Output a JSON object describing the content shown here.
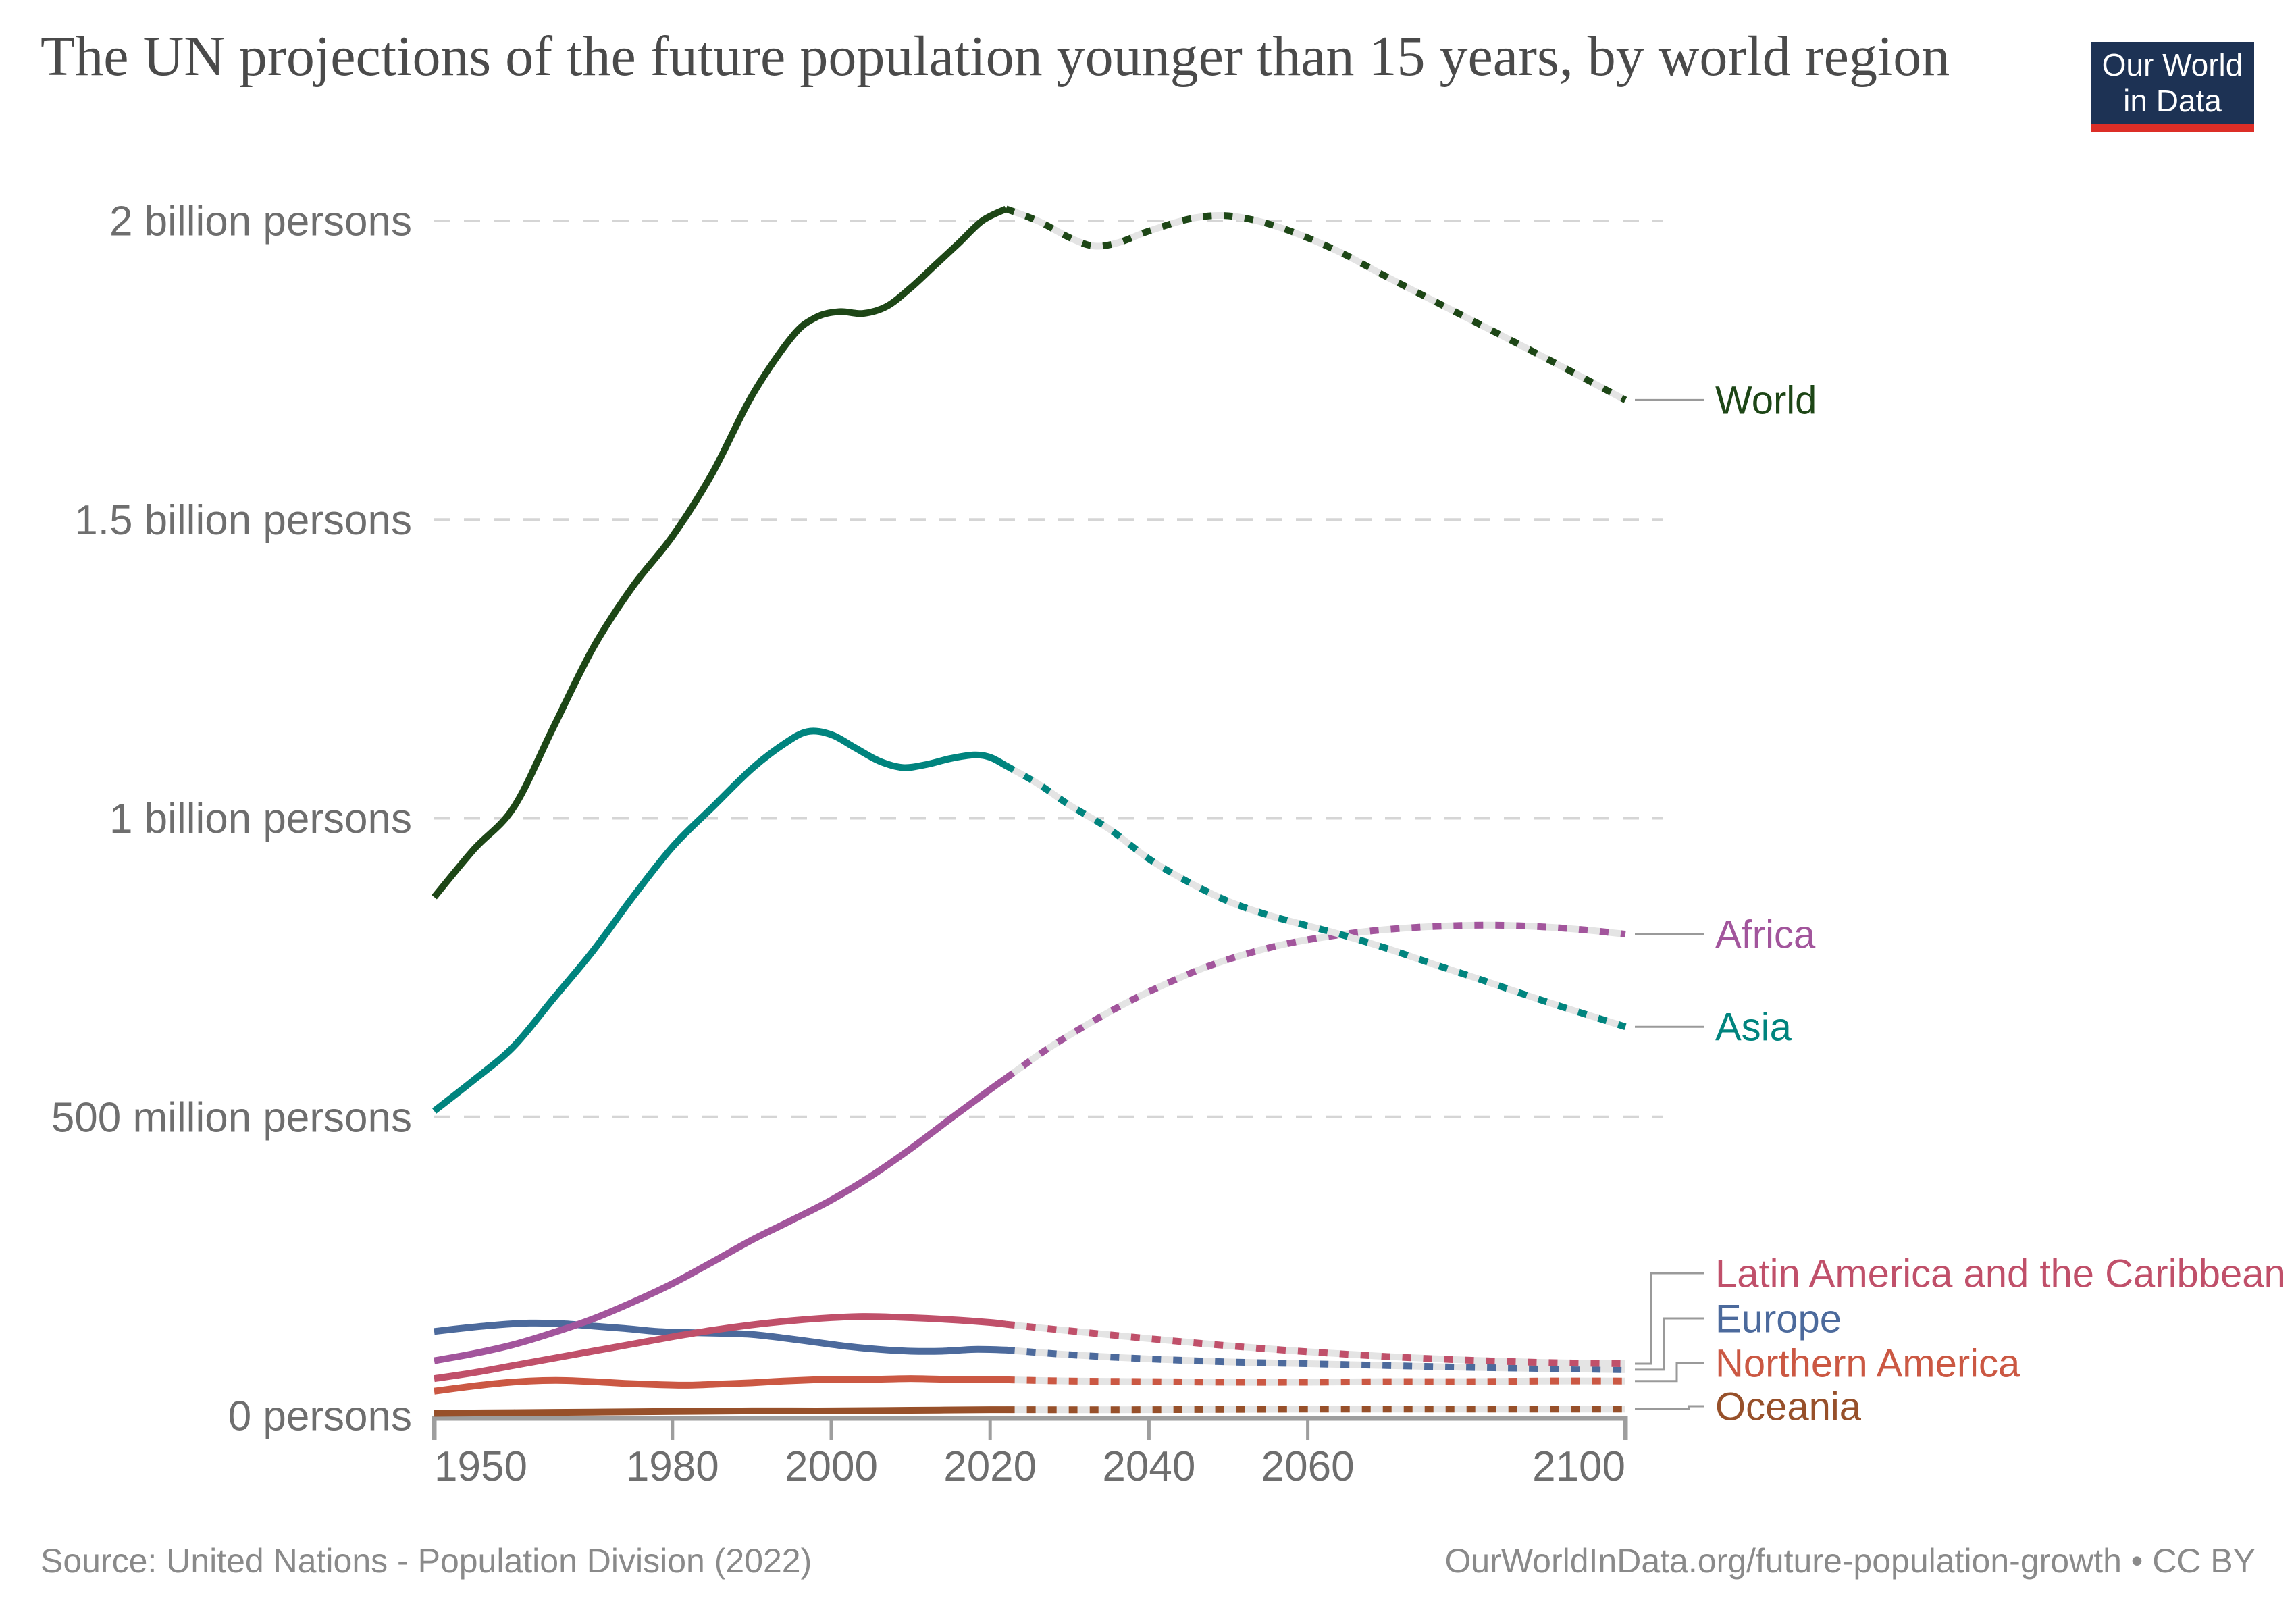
{
  "title": "The UN projections of the future population younger than 15 years, by world region",
  "logo": {
    "line1": "Our World",
    "line2": "in Data",
    "background_color": "#1d3254",
    "bar_color": "#dc2e27"
  },
  "footer": {
    "source": "Source: United Nations - Population Division (2022)",
    "credit": "OurWorldInData.org/future-population-growth • CC BY"
  },
  "chart_data": {
    "type": "line",
    "title": "The UN projections of the future population younger than 15 years, by world region",
    "units": "million persons",
    "xlabel": "",
    "ylabel": "",
    "x_range": [
      1950,
      2100
    ],
    "y_range_millions": [
      0,
      2000
    ],
    "grid": true,
    "projection_start_year": 2022,
    "projection_style": "dotted",
    "legend_position": "right-end-labels",
    "x_ticks": [
      {
        "year": 1950,
        "label": "1950"
      },
      {
        "year": 1980,
        "label": "1980"
      },
      {
        "year": 2000,
        "label": "2000"
      },
      {
        "year": 2020,
        "label": "2020"
      },
      {
        "year": 2040,
        "label": "2040"
      },
      {
        "year": 2060,
        "label": "2060"
      },
      {
        "year": 2100,
        "label": "2100"
      }
    ],
    "y_ticks": [
      {
        "value_millions": 0,
        "label": "0 persons"
      },
      {
        "value_millions": 500,
        "label": "500 million persons"
      },
      {
        "value_millions": 1000,
        "label": "1 billion persons"
      },
      {
        "value_millions": 1500,
        "label": "1.5 billion persons"
      },
      {
        "value_millions": 2000,
        "label": "2 billion persons"
      }
    ],
    "series": [
      {
        "name": "Europe",
        "color": "#4C6A9C",
        "estimate": [
          [
            1950,
            141
          ],
          [
            1954,
            147
          ],
          [
            1958,
            152
          ],
          [
            1962,
            155
          ],
          [
            1966,
            154
          ],
          [
            1970,
            150
          ],
          [
            1974,
            146
          ],
          [
            1978,
            141
          ],
          [
            1982,
            139
          ],
          [
            1986,
            138
          ],
          [
            1990,
            136
          ],
          [
            1994,
            130
          ],
          [
            1998,
            123
          ],
          [
            2002,
            116
          ],
          [
            2006,
            111
          ],
          [
            2010,
            108
          ],
          [
            2014,
            108
          ],
          [
            2018,
            111
          ],
          [
            2022,
            110
          ]
        ],
        "projection": [
          [
            2022,
            110
          ],
          [
            2030,
            102
          ],
          [
            2040,
            95
          ],
          [
            2050,
            90
          ],
          [
            2060,
            87
          ],
          [
            2070,
            84
          ],
          [
            2080,
            81
          ],
          [
            2090,
            79
          ],
          [
            2100,
            77
          ]
        ]
      },
      {
        "name": "Latin America and the Caribbean",
        "color": "#C0506A",
        "estimate": [
          [
            1950,
            62
          ],
          [
            1955,
            72
          ],
          [
            1960,
            84
          ],
          [
            1965,
            96
          ],
          [
            1970,
            108
          ],
          [
            1975,
            120
          ],
          [
            1980,
            132
          ],
          [
            1985,
            143
          ],
          [
            1990,
            152
          ],
          [
            1995,
            159
          ],
          [
            2000,
            164
          ],
          [
            2004,
            166
          ],
          [
            2008,
            165
          ],
          [
            2012,
            163
          ],
          [
            2016,
            160
          ],
          [
            2020,
            156
          ],
          [
            2022,
            153
          ]
        ],
        "projection": [
          [
            2022,
            153
          ],
          [
            2030,
            142
          ],
          [
            2040,
            129
          ],
          [
            2050,
            117
          ],
          [
            2060,
            107
          ],
          [
            2070,
            99
          ],
          [
            2080,
            93
          ],
          [
            2090,
            89
          ],
          [
            2100,
            87
          ]
        ]
      },
      {
        "name": "Northern America",
        "color": "#CB5843",
        "estimate": [
          [
            1950,
            41
          ],
          [
            1954,
            48
          ],
          [
            1958,
            54
          ],
          [
            1962,
            58
          ],
          [
            1966,
            59
          ],
          [
            1970,
            57
          ],
          [
            1974,
            54
          ],
          [
            1978,
            52
          ],
          [
            1982,
            51
          ],
          [
            1986,
            53
          ],
          [
            1990,
            55
          ],
          [
            1994,
            58
          ],
          [
            1998,
            60
          ],
          [
            2002,
            61
          ],
          [
            2006,
            61
          ],
          [
            2010,
            62
          ],
          [
            2014,
            61
          ],
          [
            2018,
            61
          ],
          [
            2022,
            60
          ]
        ],
        "projection": [
          [
            2022,
            60
          ],
          [
            2030,
            58
          ],
          [
            2040,
            57
          ],
          [
            2050,
            56
          ],
          [
            2060,
            56
          ],
          [
            2070,
            57
          ],
          [
            2080,
            57
          ],
          [
            2090,
            58
          ],
          [
            2100,
            58
          ]
        ]
      },
      {
        "name": "Oceania",
        "color": "#97502A",
        "estimate": [
          [
            1950,
            4
          ],
          [
            1960,
            5
          ],
          [
            1970,
            6
          ],
          [
            1980,
            7
          ],
          [
            1990,
            8
          ],
          [
            2000,
            8
          ],
          [
            2010,
            9
          ],
          [
            2020,
            10
          ],
          [
            2022,
            10
          ]
        ],
        "projection": [
          [
            2022,
            10
          ],
          [
            2040,
            10
          ],
          [
            2060,
            11
          ],
          [
            2080,
            11
          ],
          [
            2100,
            11
          ]
        ]
      },
      {
        "name": "Africa",
        "color": "#A2559C",
        "estimate": [
          [
            1950,
            92
          ],
          [
            1955,
            104
          ],
          [
            1960,
            119
          ],
          [
            1965,
            139
          ],
          [
            1970,
            162
          ],
          [
            1975,
            190
          ],
          [
            1980,
            221
          ],
          [
            1985,
            257
          ],
          [
            1990,
            294
          ],
          [
            1995,
            327
          ],
          [
            2000,
            361
          ],
          [
            2005,
            401
          ],
          [
            2010,
            447
          ],
          [
            2015,
            497
          ],
          [
            2020,
            546
          ],
          [
            2022,
            565
          ]
        ],
        "projection": [
          [
            2022,
            565
          ],
          [
            2027,
            612
          ],
          [
            2032,
            653
          ],
          [
            2037,
            690
          ],
          [
            2042,
            722
          ],
          [
            2047,
            750
          ],
          [
            2052,
            772
          ],
          [
            2057,
            789
          ],
          [
            2062,
            801
          ],
          [
            2067,
            810
          ],
          [
            2072,
            816
          ],
          [
            2078,
            820
          ],
          [
            2084,
            821
          ],
          [
            2090,
            818
          ],
          [
            2095,
            813
          ],
          [
            2100,
            806
          ]
        ]
      },
      {
        "name": "Asia",
        "color": "#00847E",
        "estimate": [
          [
            1950,
            510
          ],
          [
            1955,
            562
          ],
          [
            1960,
            618
          ],
          [
            1965,
            698
          ],
          [
            1970,
            778
          ],
          [
            1975,
            868
          ],
          [
            1980,
            952
          ],
          [
            1985,
            1018
          ],
          [
            1990,
            1083
          ],
          [
            1994,
            1124
          ],
          [
            1997,
            1145
          ],
          [
            2000,
            1140
          ],
          [
            2003,
            1118
          ],
          [
            2006,
            1096
          ],
          [
            2009,
            1085
          ],
          [
            2012,
            1090
          ],
          [
            2015,
            1100
          ],
          [
            2018,
            1106
          ],
          [
            2020,
            1102
          ],
          [
            2022,
            1088
          ]
        ],
        "projection": [
          [
            2022,
            1088
          ],
          [
            2026,
            1058
          ],
          [
            2030,
            1022
          ],
          [
            2035,
            982
          ],
          [
            2040,
            932
          ],
          [
            2045,
            893
          ],
          [
            2050,
            861
          ],
          [
            2055,
            838
          ],
          [
            2060,
            820
          ],
          [
            2064,
            806
          ],
          [
            2070,
            782
          ],
          [
            2076,
            755
          ],
          [
            2082,
            729
          ],
          [
            2090,
            693
          ],
          [
            2100,
            651
          ]
        ]
      },
      {
        "name": "World",
        "color": "#1D4616",
        "estimate": [
          [
            1950,
            868
          ],
          [
            1955,
            948
          ],
          [
            1960,
            1018
          ],
          [
            1965,
            1152
          ],
          [
            1970,
            1285
          ],
          [
            1975,
            1388
          ],
          [
            1980,
            1472
          ],
          [
            1985,
            1577
          ],
          [
            1990,
            1707
          ],
          [
            1995,
            1805
          ],
          [
            1998,
            1838
          ],
          [
            2001,
            1848
          ],
          [
            2004,
            1845
          ],
          [
            2007,
            1857
          ],
          [
            2010,
            1888
          ],
          [
            2013,
            1925
          ],
          [
            2016,
            1962
          ],
          [
            2019,
            2000
          ],
          [
            2022,
            2020
          ]
        ],
        "projection": [
          [
            2022,
            2020
          ],
          [
            2026,
            2000
          ],
          [
            2030,
            1972
          ],
          [
            2033,
            1958
          ],
          [
            2036,
            1963
          ],
          [
            2040,
            1983
          ],
          [
            2045,
            2003
          ],
          [
            2049,
            2009
          ],
          [
            2053,
            2002
          ],
          [
            2058,
            1982
          ],
          [
            2064,
            1948
          ],
          [
            2070,
            1906
          ],
          [
            2080,
            1838
          ],
          [
            2090,
            1770
          ],
          [
            2100,
            1700
          ]
        ]
      }
    ]
  }
}
